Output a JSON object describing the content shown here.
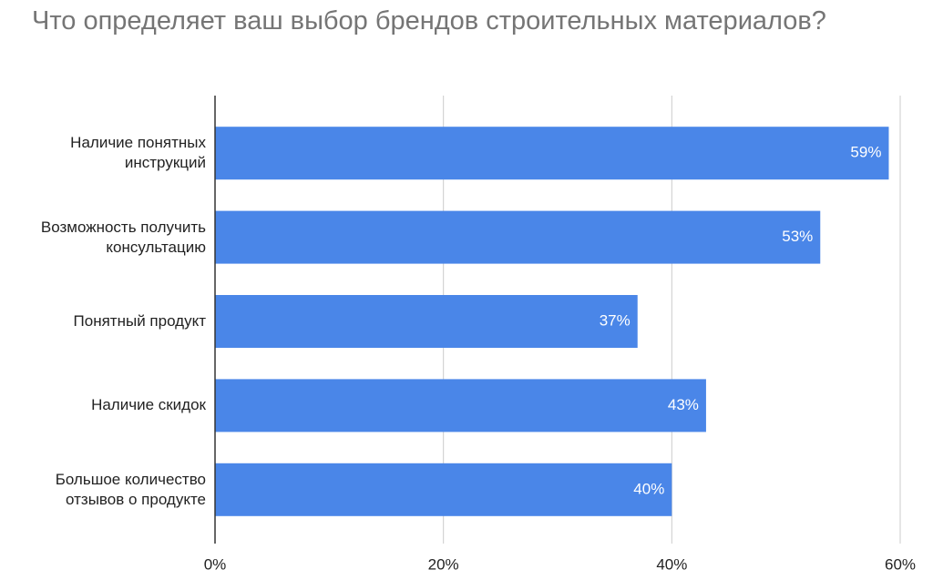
{
  "chart_data": {
    "type": "bar",
    "orientation": "horizontal",
    "title": "Что определяет ваш выбор брендов строительных материалов?",
    "categories": [
      "Наличие понятных инструкций",
      "Возможность получить консультацию",
      "Понятный продукт",
      "Наличие скидок",
      "Большое количество отзывов о продукте"
    ],
    "values": [
      59,
      53,
      37,
      43,
      40
    ],
    "value_labels": [
      "59%",
      "53%",
      "37%",
      "43%",
      "40%"
    ],
    "color": "#4a86e8",
    "xlim": [
      0,
      60
    ],
    "xticks": [
      {
        "value": 0,
        "label": "0%"
      },
      {
        "value": 20,
        "label": "20%"
      },
      {
        "value": 40,
        "label": "40%"
      },
      {
        "value": 60,
        "label": "60%"
      }
    ],
    "grid": true
  }
}
